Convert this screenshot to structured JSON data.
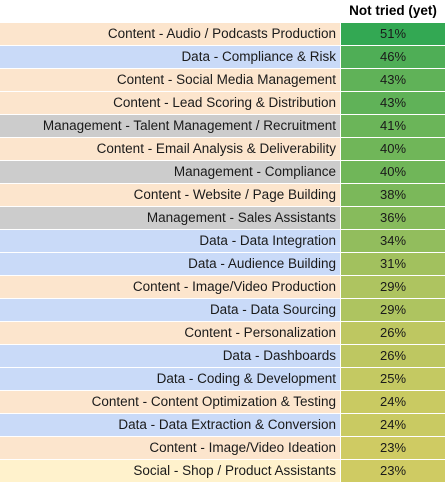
{
  "chart_data": {
    "type": "table",
    "header": "Not tried (yet)",
    "rows": [
      {
        "label": "Content - Audio / Podcasts Production",
        "value": 51,
        "display": "51%",
        "group": "Content"
      },
      {
        "label": "Data -  Compliance & Risk",
        "value": 46,
        "display": "46%",
        "group": "Data"
      },
      {
        "label": "Content - Social Media Management",
        "value": 43,
        "display": "43%",
        "group": "Content"
      },
      {
        "label": "Content - Lead Scoring & Distribution",
        "value": 43,
        "display": "43%",
        "group": "Content"
      },
      {
        "label": "Management - Talent Management / Recruitment",
        "value": 41,
        "display": "41%",
        "group": "Management"
      },
      {
        "label": "Content - Email Analysis & Deliverability",
        "value": 40,
        "display": "40%",
        "group": "Content"
      },
      {
        "label": "Management - Compliance",
        "value": 40,
        "display": "40%",
        "group": "Management"
      },
      {
        "label": "Content - Website / Page Building",
        "value": 38,
        "display": "38%",
        "group": "Content"
      },
      {
        "label": "Management - Sales Assistants",
        "value": 36,
        "display": "36%",
        "group": "Management"
      },
      {
        "label": "Data - Data Integration",
        "value": 34,
        "display": "34%",
        "group": "Data"
      },
      {
        "label": "Data - Audience Building",
        "value": 31,
        "display": "31%",
        "group": "Data"
      },
      {
        "label": "Content - Image/Video Production",
        "value": 29,
        "display": "29%",
        "group": "Content"
      },
      {
        "label": "Data - Data Sourcing",
        "value": 29,
        "display": "29%",
        "group": "Data"
      },
      {
        "label": "Content - Personalization",
        "value": 26,
        "display": "26%",
        "group": "Content"
      },
      {
        "label": "Data - Dashboards",
        "value": 26,
        "display": "26%",
        "group": "Data"
      },
      {
        "label": "Data - Coding & Development",
        "value": 25,
        "display": "25%",
        "group": "Data"
      },
      {
        "label": "Content - Content Optimization & Testing",
        "value": 24,
        "display": "24%",
        "group": "Content"
      },
      {
        "label": "Data - Data Extraction & Conversion",
        "value": 24,
        "display": "24%",
        "group": "Data"
      },
      {
        "label": "Content - Image/Video Ideation",
        "value": 23,
        "display": "23%",
        "group": "Content"
      },
      {
        "label": "Social - Shop / Product Assistants",
        "value": 23,
        "display": "23%",
        "group": "Social"
      }
    ],
    "group_colors": {
      "Content": "#fce5cd",
      "Data": "#c9daf8",
      "Management": "#cccccc",
      "Social": "#fff2cc"
    },
    "value_color_scale": {
      "min_value": 23,
      "max_value": 51,
      "min_color": "#cfcb63",
      "max_color": "#33a853"
    }
  }
}
